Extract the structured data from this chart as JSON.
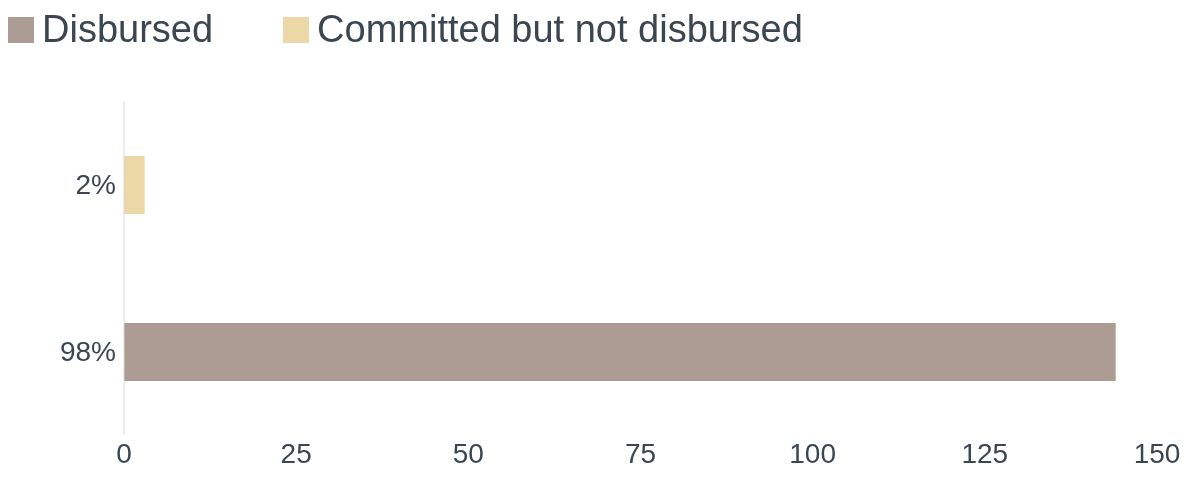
{
  "chart_data": {
    "type": "bar",
    "orientation": "horizontal",
    "stacked": true,
    "categories": [
      "2%",
      "98%"
    ],
    "series": [
      {
        "name": "Disbursed",
        "color": "#ad9c93",
        "values": [
          null,
          144
        ]
      },
      {
        "name": "Committed but not disbursed",
        "color": "#ecd7a6",
        "values": [
          3,
          null
        ]
      }
    ],
    "xlim": [
      0,
      150
    ],
    "xticks": [
      0,
      25,
      50,
      75,
      100,
      125,
      150
    ],
    "legend": "top left",
    "grid": false
  }
}
